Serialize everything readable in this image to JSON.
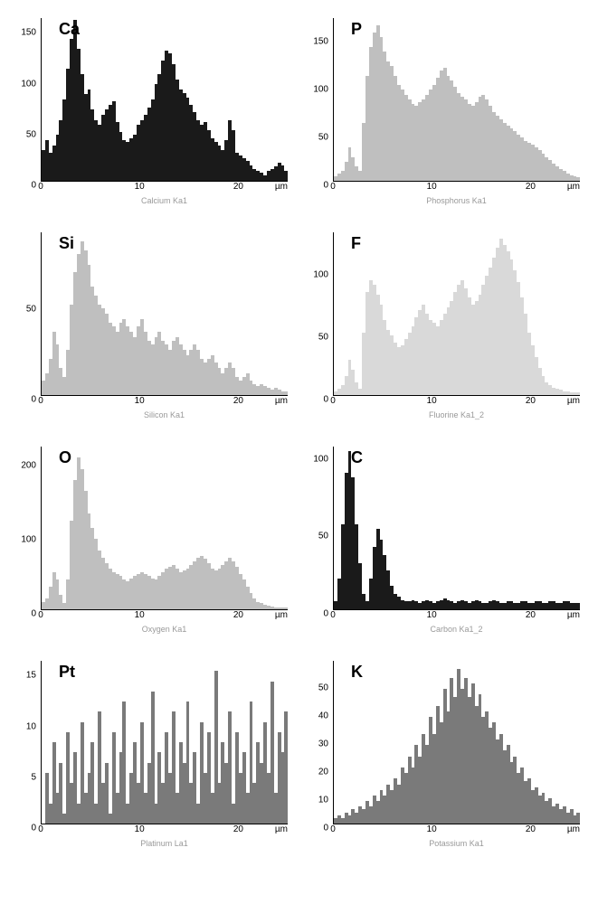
{
  "layout": {
    "rows": 4,
    "cols": 2
  },
  "x_unit": "µm",
  "panels": [
    {
      "id": "Ca",
      "element_label": "Ca",
      "sub_label": "Calcium Ka1",
      "color": "#1a1a1a",
      "ylim": [
        0,
        160
      ],
      "yticks": [
        0,
        50,
        100,
        150
      ],
      "xlim": [
        0,
        25
      ],
      "xticks": [
        0,
        10,
        20
      ],
      "data": [
        30,
        40,
        28,
        35,
        45,
        60,
        80,
        110,
        140,
        158,
        130,
        105,
        85,
        90,
        70,
        60,
        55,
        65,
        70,
        75,
        78,
        58,
        48,
        40,
        38,
        42,
        45,
        55,
        60,
        65,
        72,
        80,
        95,
        105,
        118,
        128,
        125,
        115,
        100,
        90,
        86,
        82,
        75,
        68,
        60,
        55,
        58,
        50,
        42,
        38,
        35,
        30,
        40,
        60,
        50,
        28,
        25,
        22,
        20,
        15,
        12,
        10,
        8,
        5,
        10,
        12,
        14,
        18,
        15,
        10
      ]
    },
    {
      "id": "P",
      "element_label": "P",
      "sub_label": "Phosphorus Ka1",
      "color": "#bfbfbf",
      "ylim": [
        0,
        170
      ],
      "yticks": [
        0,
        50,
        100,
        150
      ],
      "xlim": [
        0,
        25
      ],
      "xticks": [
        0,
        10,
        20
      ],
      "data": [
        5,
        8,
        10,
        20,
        35,
        25,
        15,
        10,
        60,
        110,
        140,
        155,
        162,
        150,
        135,
        125,
        120,
        110,
        100,
        95,
        90,
        85,
        80,
        78,
        82,
        85,
        90,
        95,
        100,
        108,
        115,
        118,
        110,
        105,
        98,
        92,
        88,
        85,
        80,
        78,
        82,
        88,
        90,
        85,
        78,
        72,
        68,
        64,
        60,
        58,
        55,
        52,
        48,
        45,
        42,
        40,
        38,
        35,
        32,
        28,
        25,
        22,
        18,
        15,
        12,
        10,
        8,
        6,
        5,
        4
      ]
    },
    {
      "id": "Si",
      "element_label": "Si",
      "sub_label": "Silicon Ka1",
      "color": "#bfbfbf",
      "ylim": [
        0,
        90
      ],
      "yticks": [
        0,
        50
      ],
      "xlim": [
        0,
        25
      ],
      "xticks": [
        0,
        10,
        20
      ],
      "data": [
        8,
        12,
        20,
        35,
        28,
        15,
        10,
        25,
        50,
        68,
        78,
        85,
        80,
        72,
        60,
        55,
        50,
        48,
        45,
        40,
        38,
        35,
        40,
        42,
        38,
        35,
        32,
        38,
        42,
        35,
        30,
        28,
        32,
        35,
        30,
        28,
        25,
        30,
        32,
        28,
        25,
        22,
        25,
        28,
        25,
        20,
        18,
        20,
        22,
        18,
        15,
        12,
        15,
        18,
        15,
        10,
        8,
        10,
        12,
        8,
        6,
        5,
        6,
        5,
        4,
        3,
        4,
        3,
        2,
        2
      ]
    },
    {
      "id": "F",
      "element_label": "F",
      "sub_label": "Fluorine Ka1_2",
      "color": "#d9d9d9",
      "ylim": [
        0,
        130
      ],
      "yticks": [
        0,
        50,
        100
      ],
      "xlim": [
        0,
        25
      ],
      "xticks": [
        0,
        10,
        20
      ],
      "data": [
        3,
        5,
        8,
        15,
        28,
        20,
        10,
        5,
        50,
        82,
        92,
        88,
        80,
        72,
        60,
        52,
        48,
        42,
        38,
        40,
        45,
        50,
        55,
        62,
        68,
        72,
        65,
        60,
        58,
        55,
        60,
        65,
        70,
        75,
        82,
        88,
        92,
        85,
        78,
        72,
        75,
        80,
        88,
        95,
        102,
        110,
        118,
        125,
        120,
        115,
        108,
        100,
        90,
        78,
        65,
        50,
        40,
        30,
        22,
        15,
        10,
        8,
        6,
        5,
        4,
        3,
        3,
        2,
        2,
        2
      ]
    },
    {
      "id": "O",
      "element_label": "O",
      "sub_label": "Oxygen Ka1",
      "color": "#bfbfbf",
      "ylim": [
        0,
        220
      ],
      "yticks": [
        0,
        100,
        200
      ],
      "xlim": [
        0,
        25
      ],
      "xticks": [
        0,
        10,
        20
      ],
      "data": [
        10,
        15,
        30,
        50,
        40,
        20,
        8,
        40,
        120,
        175,
        205,
        190,
        160,
        130,
        110,
        95,
        80,
        70,
        62,
        55,
        50,
        48,
        45,
        40,
        38,
        42,
        45,
        48,
        50,
        48,
        45,
        42,
        40,
        45,
        50,
        55,
        58,
        60,
        55,
        50,
        52,
        55,
        60,
        65,
        70,
        72,
        68,
        62,
        55,
        52,
        55,
        60,
        65,
        70,
        65,
        58,
        48,
        40,
        30,
        22,
        15,
        10,
        8,
        6,
        5,
        4,
        3,
        3,
        2,
        2
      ]
    },
    {
      "id": "C",
      "element_label": "C",
      "sub_label": "Carbon Ka1_2",
      "color": "#1a1a1a",
      "ylim": [
        0,
        105
      ],
      "yticks": [
        0,
        50,
        100
      ],
      "xlim": [
        0,
        25
      ],
      "xticks": [
        0,
        10,
        20
      ],
      "data": [
        5,
        20,
        55,
        88,
        102,
        85,
        55,
        30,
        10,
        5,
        20,
        40,
        52,
        45,
        35,
        25,
        15,
        10,
        8,
        6,
        5,
        5,
        6,
        5,
        4,
        5,
        6,
        5,
        4,
        5,
        6,
        7,
        6,
        5,
        4,
        5,
        6,
        5,
        4,
        5,
        6,
        5,
        4,
        4,
        5,
        6,
        5,
        4,
        4,
        5,
        5,
        4,
        4,
        5,
        5,
        4,
        4,
        5,
        5,
        4,
        4,
        5,
        5,
        4,
        4,
        5,
        5,
        4,
        4,
        4
      ]
    },
    {
      "id": "Pt",
      "element_label": "Pt",
      "sub_label": "Platinum La1",
      "color": "#7a7a7a",
      "ylim": [
        0,
        16
      ],
      "yticks": [
        0,
        5,
        10,
        15
      ],
      "xlim": [
        0,
        25
      ],
      "xticks": [
        0,
        10,
        20
      ],
      "data": [
        0,
        5,
        2,
        8,
        3,
        6,
        1,
        9,
        4,
        7,
        2,
        10,
        3,
        5,
        8,
        2,
        11,
        4,
        6,
        1,
        9,
        3,
        7,
        12,
        2,
        5,
        8,
        4,
        10,
        3,
        6,
        13,
        2,
        7,
        4,
        9,
        5,
        11,
        3,
        8,
        6,
        12,
        4,
        7,
        2,
        10,
        5,
        9,
        3,
        15,
        4,
        8,
        6,
        11,
        2,
        9,
        5,
        7,
        3,
        12,
        4,
        8,
        6,
        10,
        5,
        14,
        3,
        9,
        7,
        11
      ]
    },
    {
      "id": "K",
      "element_label": "K",
      "sub_label": "Potassium Ka1",
      "color": "#7a7a7a",
      "ylim": [
        0,
        58
      ],
      "yticks": [
        0,
        10,
        20,
        30,
        40,
        50
      ],
      "xlim": [
        0,
        25
      ],
      "xticks": [
        0,
        10,
        20
      ],
      "data": [
        2,
        3,
        2,
        4,
        3,
        5,
        4,
        6,
        5,
        8,
        6,
        10,
        8,
        12,
        10,
        14,
        12,
        16,
        14,
        20,
        18,
        24,
        20,
        28,
        24,
        32,
        28,
        38,
        32,
        42,
        36,
        48,
        40,
        52,
        45,
        55,
        48,
        52,
        45,
        50,
        42,
        46,
        38,
        40,
        34,
        36,
        30,
        32,
        26,
        28,
        22,
        24,
        18,
        20,
        15,
        16,
        12,
        13,
        10,
        11,
        8,
        9,
        6,
        7,
        5,
        6,
        4,
        5,
        3,
        4
      ]
    }
  ]
}
